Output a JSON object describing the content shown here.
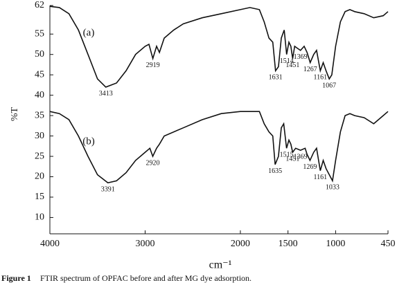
{
  "chart_data": {
    "type": "line",
    "y_label": "%T",
    "x_label": "cm⁻¹",
    "caption_label": "Figure 1",
    "caption": "FTIR spectrum of OPFAC before and after MG dye adsorption.",
    "xlim": [
      4000,
      450
    ],
    "xticks": [
      4000,
      3000,
      2000,
      1500,
      1000,
      450
    ],
    "ylim": [
      6,
      62
    ],
    "yticks": [
      62,
      55,
      50,
      45,
      40,
      35,
      30,
      25,
      20,
      15,
      10
    ],
    "series": [
      {
        "name": "(a)",
        "color": "#111111",
        "x": [
          4000,
          3900,
          3800,
          3700,
          3600,
          3500,
          3413,
          3300,
          3200,
          3100,
          3000,
          2960,
          2919,
          2880,
          2850,
          2800,
          2700,
          2600,
          2400,
          2200,
          2000,
          1900,
          1800,
          1750,
          1700,
          1660,
          1631,
          1600,
          1570,
          1540,
          1514,
          1490,
          1470,
          1451,
          1430,
          1400,
          1369,
          1330,
          1300,
          1267,
          1230,
          1200,
          1161,
          1130,
          1100,
          1067,
          1040,
          1000,
          950,
          900,
          850,
          800,
          700,
          600,
          500,
          450
        ],
        "values": [
          61.8,
          61.5,
          60,
          56,
          50,
          44,
          42,
          43,
          46,
          50,
          52,
          52.5,
          49,
          52,
          50.5,
          54,
          56,
          57.5,
          59,
          60,
          61,
          61.5,
          61,
          58,
          54,
          53,
          46,
          47,
          54,
          56,
          50,
          53,
          52,
          49,
          52,
          51.5,
          51,
          52,
          50.5,
          48,
          50,
          51,
          46,
          48,
          46,
          44,
          45,
          52,
          58,
          60.5,
          61,
          60.5,
          60,
          59,
          59.5,
          60.5
        ]
      },
      {
        "name": "(b)",
        "color": "#111111",
        "x": [
          4000,
          3900,
          3800,
          3700,
          3600,
          3500,
          3391,
          3300,
          3200,
          3100,
          3000,
          2950,
          2920,
          2880,
          2850,
          2800,
          2600,
          2400,
          2200,
          2000,
          1800,
          1750,
          1700,
          1660,
          1635,
          1600,
          1570,
          1545,
          1515,
          1490,
          1470,
          1451,
          1420,
          1369,
          1320,
          1300,
          1269,
          1230,
          1200,
          1161,
          1130,
          1100,
          1033,
          1000,
          950,
          900,
          850,
          800,
          700,
          600,
          500,
          450
        ],
        "values": [
          36,
          35.5,
          34,
          30,
          25,
          20.5,
          18.5,
          19,
          21,
          24,
          26,
          27,
          25,
          27,
          28,
          30,
          32,
          34,
          35.5,
          36,
          36,
          33,
          31,
          30,
          23,
          25,
          32,
          33,
          27,
          29,
          28,
          26,
          27,
          26.5,
          27,
          25.5,
          24,
          26,
          27,
          21.5,
          24,
          22,
          19,
          24,
          31,
          35,
          35.5,
          35,
          34.5,
          33,
          35,
          36
        ]
      }
    ],
    "annotations": [
      {
        "x": 3413,
        "y": 42
      },
      {
        "x": 2919,
        "y": 49
      },
      {
        "x": 1631,
        "y": 46
      },
      {
        "x": 1514,
        "y": 50
      },
      {
        "x": 1451,
        "y": 49
      },
      {
        "x": 1369,
        "y": 51
      },
      {
        "x": 1267,
        "y": 48
      },
      {
        "x": 1161,
        "y": 46
      },
      {
        "x": 1067,
        "y": 44
      },
      {
        "x": 3391,
        "y": 18.5
      },
      {
        "x": 2920,
        "y": 25
      },
      {
        "x": 1635,
        "y": 23
      },
      {
        "x": 1515,
        "y": 27
      },
      {
        "x": 1451,
        "y": 26
      },
      {
        "x": 1369,
        "y": 26.5
      },
      {
        "x": 1269,
        "y": 24
      },
      {
        "x": 1161,
        "y": 21.5
      },
      {
        "x": 1033,
        "y": 19
      }
    ]
  }
}
